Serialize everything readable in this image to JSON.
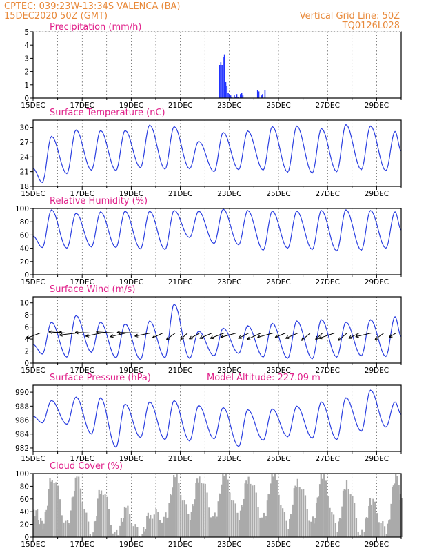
{
  "header": {
    "station": "CPTEC:   039:23W-13:34S   VALENCA (BA)",
    "date": "15DEC2020 50Z (GMT)",
    "grid_note": "Vertical Grid Line: 50Z",
    "code": "TQ0126L028"
  },
  "colors": {
    "line": "#2a3ee0",
    "bar": "#2233ff",
    "cloud": "#aaaaaa",
    "header": "#e8893a",
    "title": "#e0218a"
  },
  "chart_data": [
    {
      "type": "bar",
      "title": "Precipitation  (mm/h)",
      "ylim": [
        0,
        5
      ],
      "yticks": [
        "0",
        "1",
        "2",
        "3",
        "4",
        "5"
      ],
      "xticks": [
        "15DEC",
        "17DEC",
        "19DEC",
        "21DEC",
        "23DEC",
        "25DEC",
        "27DEC",
        "29DEC"
      ],
      "x_range_days": [
        0,
        15
      ],
      "x": [
        7.6,
        7.65,
        7.7,
        7.75,
        7.8,
        7.85,
        7.9,
        7.95,
        8.0,
        8.05,
        8.1,
        8.2,
        8.25,
        8.3,
        8.35,
        8.45,
        8.5,
        8.55,
        9.15,
        9.2,
        9.3,
        9.35,
        9.45
      ],
      "values": [
        2.5,
        2.7,
        2.5,
        3.1,
        3.3,
        1.2,
        0.9,
        0.4,
        0.3,
        0.2,
        0.1,
        0.2,
        0.1,
        0.3,
        0.1,
        0.3,
        0.4,
        0.2,
        0.6,
        0.5,
        0.2,
        0.3,
        0.6
      ]
    },
    {
      "type": "line",
      "title": "Surface Temperature (nC)",
      "ylim": [
        18,
        31.5
      ],
      "yticks": [
        "18",
        "21",
        "24",
        "27",
        "30"
      ],
      "xticks": [
        "15DEC",
        "17DEC",
        "19DEC",
        "21DEC",
        "23DEC",
        "25DEC",
        "27DEC",
        "29DEC"
      ],
      "x_range_days": [
        0,
        15
      ],
      "daily_max": [
        28.2,
        29.5,
        29.4,
        29.4,
        30.5,
        30.2,
        27.2,
        29.0,
        29.3,
        30.2,
        30.3,
        29.8,
        30.6,
        30.3,
        29.2
      ],
      "daily_min": [
        18.8,
        20.6,
        21.3,
        21.2,
        21.8,
        21.5,
        21.6,
        21.0,
        21.4,
        21.3,
        20.9,
        20.7,
        21.0,
        21.4,
        21.2
      ]
    },
    {
      "type": "line",
      "title": "Relative Humidity (%)",
      "ylim": [
        0,
        100
      ],
      "yticks": [
        "0",
        "20",
        "40",
        "60",
        "80",
        "100"
      ],
      "xticks": [
        "15DEC",
        "17DEC",
        "19DEC",
        "21DEC",
        "23DEC",
        "25DEC",
        "27DEC",
        "29DEC"
      ],
      "x_range_days": [
        0,
        15
      ],
      "daily_max": [
        98,
        93,
        95,
        96,
        96,
        97,
        96,
        99,
        97,
        96,
        96,
        97,
        98,
        97,
        95
      ],
      "daily_min": [
        41,
        40,
        42,
        41,
        39,
        38,
        56,
        47,
        45,
        37,
        40,
        38,
        36,
        37,
        40
      ]
    },
    {
      "type": "line",
      "title": "Surface Wind (m/s)",
      "ylim": [
        0,
        11
      ],
      "yticks": [
        "0",
        "2",
        "4",
        "6",
        "8",
        "10"
      ],
      "xticks": [
        "15DEC",
        "17DEC",
        "19DEC",
        "21DEC",
        "23DEC",
        "25DEC",
        "27DEC",
        "29DEC"
      ],
      "x_range_days": [
        0,
        15
      ],
      "daily_max": [
        6.8,
        7.9,
        6.8,
        6.5,
        7.0,
        9.8,
        5.3,
        5.8,
        6.2,
        6.6,
        7.0,
        7.2,
        6.8,
        7.2,
        7.7
      ],
      "daily_min": [
        1.5,
        1.0,
        1.8,
        0.9,
        0.6,
        0.9,
        0.8,
        1.2,
        1.6,
        1.0,
        0.8,
        0.7,
        1.0,
        1.2,
        1.1
      ],
      "vectors_x": [
        0.3,
        0.8,
        1.3,
        1.8,
        2.3,
        2.8,
        3.3,
        3.8,
        4.3,
        4.8,
        5.3,
        5.8,
        6.3,
        6.8,
        7.3,
        7.8,
        8.3,
        8.8,
        9.3,
        9.8,
        10.3,
        10.8,
        11.3,
        11.8,
        12.3,
        12.8,
        13.3,
        13.8,
        14.3,
        14.8
      ],
      "vectors_u": [
        -0.8,
        0.5,
        -0.9,
        -1.0,
        -0.8,
        -0.9,
        -1.0,
        -0.9,
        -1.2,
        -0.9,
        -0.6,
        -0.5,
        -0.4,
        -0.6,
        -0.7,
        -0.8,
        -0.9,
        -0.6,
        -0.8,
        -0.9,
        -0.6,
        -0.7,
        -0.5,
        -0.4,
        -0.9,
        -0.5,
        -0.6,
        -0.9,
        -0.5,
        -0.4
      ],
      "vectors_v": [
        -0.5,
        0.1,
        0.1,
        -0.2,
        0.05,
        -0.3,
        0.1,
        -0.35,
        0.05,
        -0.3,
        -0.45,
        -0.6,
        -0.6,
        -0.55,
        -0.5,
        -0.5,
        -0.4,
        -0.5,
        -0.6,
        -0.4,
        -0.4,
        -0.5,
        -0.7,
        -0.6,
        -0.5,
        -0.7,
        -0.5,
        -0.35,
        -0.6,
        -0.4
      ]
    },
    {
      "type": "line",
      "title": "Surface Pressure (hPa)",
      "subtitle": "Model Altitude: 227.09  m",
      "ylim": [
        981.5,
        991
      ],
      "yticks": [
        "982",
        "984",
        "986",
        "988",
        "990"
      ],
      "xticks": [
        "15DEC",
        "17DEC",
        "19DEC",
        "21DEC",
        "23DEC",
        "25DEC",
        "27DEC",
        "29DEC"
      ],
      "x_range_days": [
        0,
        15
      ],
      "daily_max": [
        988.8,
        989.3,
        989.2,
        988.3,
        988.6,
        988.8,
        988.1,
        987.8,
        987.5,
        987.6,
        988.0,
        988.6,
        989.2,
        990.3,
        988.6
      ],
      "daily_min": [
        985.6,
        985.4,
        984.0,
        982.1,
        983.5,
        983.2,
        983.0,
        983.3,
        982.2,
        983.1,
        983.6,
        983.4,
        983.2,
        984.4,
        985.0
      ]
    },
    {
      "type": "area",
      "title": "Cloud Cover (%)",
      "ylim": [
        0,
        100
      ],
      "yticks": [
        "0",
        "20",
        "40",
        "60",
        "80",
        "100"
      ],
      "xticks": [
        "15DEC",
        "17DEC",
        "19DEC",
        "21DEC",
        "23DEC",
        "25DEC",
        "27DEC",
        "29DEC"
      ],
      "x_range_days": [
        0,
        15
      ],
      "daily_max": [
        96,
        90,
        78,
        42,
        38,
        92,
        97,
        96,
        95,
        96,
        90,
        94,
        86,
        55,
        96
      ],
      "daily_min": [
        20,
        18,
        5,
        2,
        2,
        30,
        35,
        30,
        35,
        30,
        20,
        25,
        15,
        5,
        10
      ]
    }
  ]
}
